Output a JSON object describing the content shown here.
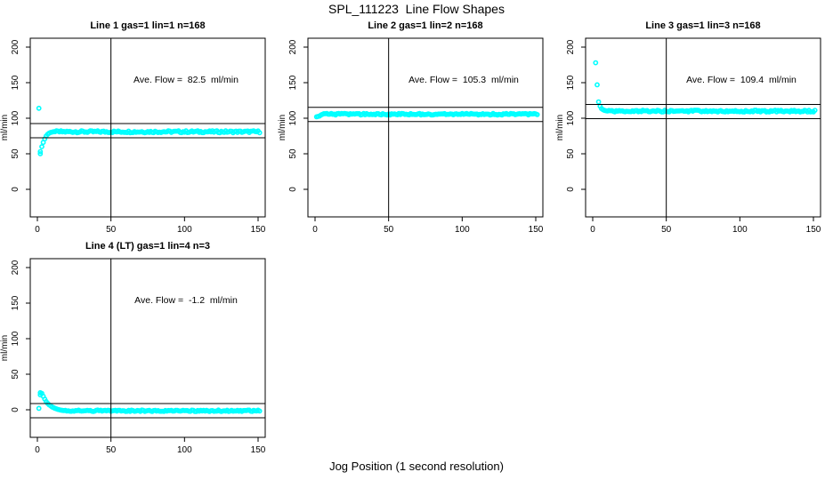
{
  "chart": {
    "main_title": "SPL_111223  Line Flow Shapes",
    "xlabel": "Jog Position (1 second resolution)",
    "ylabel": "ml/min",
    "point_color": "#00ffff",
    "line_color": "#000000",
    "background": "#ffffff"
  },
  "chart_data": {
    "type": "scatter",
    "layout": "2 rows x 3 cols grid, panels 1-3 top row, panel 4 bottom-left",
    "x_ticks": [
      0,
      50,
      100,
      150
    ],
    "y_ticks": [
      0,
      50,
      100,
      150,
      200
    ],
    "x_range": [
      -5,
      155
    ],
    "y_range": [
      -38,
      212
    ],
    "vline_x": 50,
    "ref_band_halfwidth": 10,
    "marker": "open-circle",
    "grid": "off",
    "subplots": [
      {
        "title": "Line 1 gas=1 lin=1 n=168",
        "ave_flow": 82.5,
        "annotation": "Ave. Flow =  82.5  ml/min",
        "ref_lines": [
          92.5,
          72.5
        ],
        "transient_points": [
          [
            1,
            114
          ],
          [
            2,
            50
          ],
          [
            2,
            53
          ],
          [
            3,
            60
          ],
          [
            4,
            66
          ],
          [
            5,
            71
          ],
          [
            6,
            75
          ],
          [
            7,
            77.5
          ],
          [
            8,
            79
          ],
          [
            9,
            80
          ],
          [
            10,
            80.5
          ],
          [
            11,
            81
          ],
          [
            12,
            81
          ]
        ],
        "steady": {
          "from": 13,
          "to": 151,
          "value": 81,
          "jitter": 1.4
        }
      },
      {
        "title": "Line 2 gas=1 lin=2 n=168",
        "ave_flow": 105.3,
        "annotation": "Ave. Flow =  105.3  ml/min",
        "ref_lines": [
          115.3,
          95.3
        ],
        "transient_points": [
          [
            1,
            102
          ],
          [
            2,
            102.5
          ],
          [
            3,
            103
          ],
          [
            4,
            104.5
          ],
          [
            5,
            105.5
          ]
        ],
        "steady": {
          "from": 6,
          "to": 151,
          "value": 105.6,
          "jitter": 1.1
        }
      },
      {
        "title": "Line 3 gas=1 lin=3 n=168",
        "ave_flow": 109.4,
        "annotation": "Ave. Flow =  109.4  ml/min",
        "ref_lines": [
          119.4,
          99.4
        ],
        "transient_points": [
          [
            2,
            178
          ],
          [
            3,
            147
          ],
          [
            4,
            123
          ],
          [
            5,
            117
          ],
          [
            6,
            113.5
          ],
          [
            7,
            112
          ],
          [
            8,
            111
          ],
          [
            9,
            110.5
          ]
        ],
        "steady": {
          "from": 10,
          "to": 151,
          "value": 110,
          "jitter": 1.3
        }
      },
      {
        "title": "Line 4 (LT) gas=1 lin=4 n=3",
        "ave_flow": -1.2,
        "annotation": "Ave. Flow =  -1.2  ml/min",
        "ref_lines": [
          8.8,
          -11.2
        ],
        "transient_points": [
          [
            1,
            2
          ],
          [
            2,
            21
          ],
          [
            2,
            24
          ],
          [
            3,
            23
          ],
          [
            4,
            19
          ],
          [
            5,
            15
          ],
          [
            6,
            11.5
          ],
          [
            7,
            9
          ],
          [
            8,
            7
          ],
          [
            9,
            5.5
          ],
          [
            10,
            4
          ],
          [
            11,
            3
          ],
          [
            12,
            2
          ],
          [
            13,
            1.2
          ],
          [
            14,
            0.5
          ],
          [
            15,
            0
          ],
          [
            16,
            -0.5
          ],
          [
            17,
            -0.9
          ]
        ],
        "steady": {
          "from": 18,
          "to": 151,
          "value": -1.4,
          "jitter": 1.0
        }
      }
    ]
  }
}
